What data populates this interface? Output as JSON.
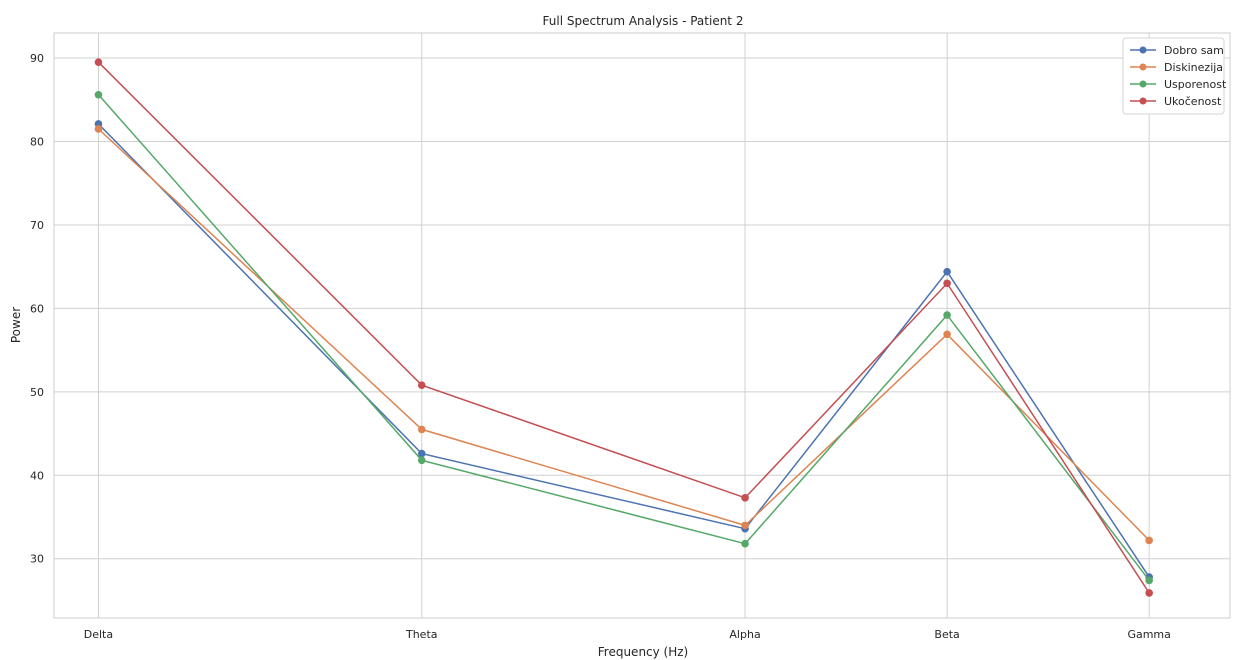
{
  "chart_data": {
    "type": "line",
    "title": "Full Spectrum Analysis - Patient 2",
    "xlabel": "Frequency (Hz)",
    "ylabel": "Power",
    "categories": [
      "Delta",
      "Theta",
      "Alpha",
      "Beta",
      "Gamma"
    ],
    "x": [
      2,
      6,
      10,
      12.5,
      15
    ],
    "xlim": [
      1.45,
      16.0
    ],
    "ylim": [
      22.9,
      93.0
    ],
    "yticks": [
      30,
      40,
      50,
      60,
      70,
      80,
      90
    ],
    "grid": true,
    "legend_position": "top-right",
    "series": [
      {
        "name": "Dobro sam",
        "color": "#4c72b0",
        "values": [
          82.1,
          42.6,
          33.6,
          64.4,
          27.8
        ]
      },
      {
        "name": "Diskinezija",
        "color": "#dd8452",
        "values": [
          81.5,
          45.5,
          34.0,
          56.9,
          32.2
        ]
      },
      {
        "name": "Usporenost",
        "color": "#55a868",
        "values": [
          85.6,
          41.8,
          31.8,
          59.2,
          27.4
        ]
      },
      {
        "name": "Ukočenost",
        "color": "#c44e52",
        "values": [
          89.5,
          50.8,
          37.3,
          63.0,
          25.9
        ]
      }
    ]
  }
}
